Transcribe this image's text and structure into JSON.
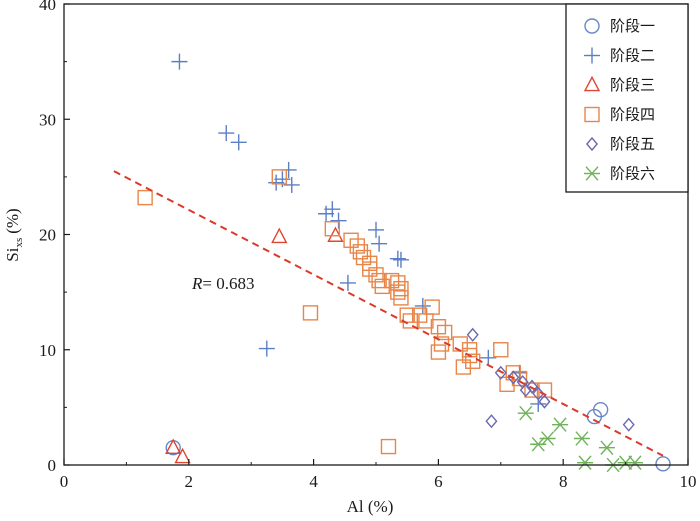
{
  "chart_data": {
    "type": "scatter",
    "xlabel": "Al (%)",
    "ylabel_main": "Si",
    "ylabel_sub": "xs",
    "ylabel_unit": "(%)",
    "xlim": [
      0,
      10
    ],
    "ylim": [
      0,
      40
    ],
    "xticks": [
      0,
      2,
      4,
      6,
      8,
      10
    ],
    "yticks": [
      0,
      10,
      20,
      30,
      40
    ],
    "grid": false,
    "legend_position": "top-right",
    "annotation": {
      "italic": "R",
      "rest": "= 0.683"
    },
    "trendline": {
      "x": [
        0.8,
        9.6
      ],
      "y": [
        25.5,
        0.8
      ],
      "color": "#d93a2b",
      "style": "dashed"
    },
    "series": [
      {
        "name": "阶段一",
        "marker": "circle",
        "color": "#6b86c7",
        "points": [
          [
            1.75,
            1.5
          ],
          [
            8.5,
            4.2
          ],
          [
            8.6,
            4.8
          ],
          [
            9.6,
            0.1
          ]
        ]
      },
      {
        "name": "阶段二",
        "marker": "plus",
        "color": "#5b7fc4",
        "points": [
          [
            1.85,
            35.0
          ],
          [
            2.6,
            28.8
          ],
          [
            2.8,
            28.0
          ],
          [
            3.4,
            24.5
          ],
          [
            3.5,
            24.8
          ],
          [
            3.6,
            25.6
          ],
          [
            3.65,
            24.3
          ],
          [
            4.2,
            21.8
          ],
          [
            4.3,
            22.2
          ],
          [
            4.4,
            21.2
          ],
          [
            4.55,
            15.8
          ],
          [
            5.0,
            20.4
          ],
          [
            5.05,
            19.2
          ],
          [
            5.35,
            17.9
          ],
          [
            5.4,
            17.8
          ],
          [
            3.25,
            10.1
          ],
          [
            5.75,
            13.8
          ],
          [
            6.8,
            9.3
          ],
          [
            7.3,
            8.0
          ],
          [
            7.6,
            5.3
          ]
        ]
      },
      {
        "name": "阶段三",
        "marker": "triangle",
        "color": "#e0452f",
        "points": [
          [
            1.75,
            1.5
          ],
          [
            1.9,
            0.7
          ],
          [
            3.45,
            19.8
          ],
          [
            4.35,
            19.9
          ]
        ]
      },
      {
        "name": "阶段四",
        "marker": "square",
        "color": "#e8864a",
        "points": [
          [
            1.3,
            23.2
          ],
          [
            3.45,
            25.0
          ],
          [
            3.95,
            13.2
          ],
          [
            4.3,
            20.5
          ],
          [
            4.6,
            19.5
          ],
          [
            4.7,
            19.0
          ],
          [
            4.75,
            18.5
          ],
          [
            4.8,
            18.0
          ],
          [
            4.9,
            17.5
          ],
          [
            4.9,
            17.0
          ],
          [
            5.0,
            16.5
          ],
          [
            5.05,
            16.0
          ],
          [
            5.1,
            15.5
          ],
          [
            5.25,
            16.0
          ],
          [
            5.35,
            15.8
          ],
          [
            5.35,
            15.0
          ],
          [
            5.4,
            14.5
          ],
          [
            5.4,
            15.3
          ],
          [
            5.5,
            13.0
          ],
          [
            5.55,
            12.5
          ],
          [
            5.7,
            13.0
          ],
          [
            5.8,
            12.5
          ],
          [
            5.9,
            13.7
          ],
          [
            6.0,
            12.0
          ],
          [
            6.1,
            11.5
          ],
          [
            6.0,
            9.8
          ],
          [
            6.05,
            10.5
          ],
          [
            6.35,
            10.5
          ],
          [
            6.4,
            8.5
          ],
          [
            6.5,
            9.5
          ],
          [
            6.55,
            9.0
          ],
          [
            6.5,
            10.0
          ],
          [
            7.0,
            10.0
          ],
          [
            7.1,
            7.0
          ],
          [
            7.2,
            8.0
          ],
          [
            7.3,
            7.5
          ],
          [
            7.5,
            6.5
          ],
          [
            7.7,
            6.5
          ],
          [
            5.2,
            1.6
          ]
        ]
      },
      {
        "name": "阶段五",
        "marker": "diamond",
        "color": "#6a6ab0",
        "points": [
          [
            6.55,
            11.3
          ],
          [
            7.0,
            8.0
          ],
          [
            7.2,
            7.6
          ],
          [
            7.35,
            7.2
          ],
          [
            7.4,
            6.5
          ],
          [
            7.5,
            6.8
          ],
          [
            7.6,
            6.2
          ],
          [
            7.7,
            5.5
          ],
          [
            6.85,
            3.8
          ],
          [
            9.05,
            3.5
          ]
        ]
      },
      {
        "name": "阶段六",
        "marker": "asterisk",
        "color": "#6fb25a",
        "points": [
          [
            7.4,
            4.5
          ],
          [
            7.6,
            1.8
          ],
          [
            7.75,
            2.3
          ],
          [
            7.95,
            3.5
          ],
          [
            8.3,
            2.3
          ],
          [
            8.35,
            0.2
          ],
          [
            8.7,
            1.5
          ],
          [
            8.8,
            0.0
          ],
          [
            9.0,
            0.2
          ],
          [
            9.15,
            0.2
          ]
        ]
      }
    ]
  }
}
